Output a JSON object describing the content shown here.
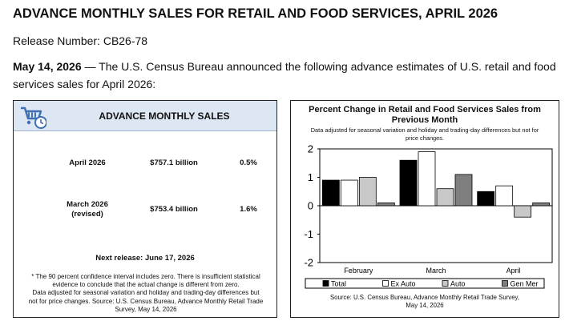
{
  "header": {
    "title": "ADVANCE MONTHLY SALES FOR RETAIL AND FOOD SERVICES, APRIL 2026",
    "release_number": "Release Number: CB26-78",
    "date": "May 14, 2026",
    "announcement": " — The U.S. Census Bureau announced the following advance estimates of U.S. retail and food services sales for April 2026:"
  },
  "sales_box": {
    "title": "ADVANCE MONTHLY SALES",
    "icon": "shopping-cart-clock-icon",
    "rows": [
      {
        "label": "April 2026",
        "amount": "$757.1 billion",
        "pct": "0.5%"
      },
      {
        "label": "March 2026\n(revised)",
        "label_line1": "March 2026",
        "label_line2": "(revised)",
        "amount": "$753.4 billion",
        "pct": "1.6%"
      }
    ],
    "next_release": "Next release: June 17, 2026",
    "footnote_line1": "* The 90 percent confidence interval includes zero. There is insufficient statistical",
    "footnote_line2": "evidence to conclude that the actual change is different from zero.",
    "footnote_line3": "Data adjusted for seasonal variation and holiday and trading-day differences but",
    "footnote_line4": "not for price changes. Source: U.S. Census Bureau, Advance Monthly Retail Trade",
    "footnote_line5": "Survey, May 14, 2026",
    "colors": {
      "header_bg": "#dde7f3",
      "icon_blue": "#3f6fb0"
    }
  },
  "chart_data": {
    "type": "bar",
    "title_line1": "Percent Change in Retail and Food Services Sales from",
    "title_line2": "Previous Month",
    "subtitle_line1": "Data adjusted for seasonal variation and holiday and trading-day differences but not for",
    "subtitle_line2": "price changes.",
    "categories": [
      "February",
      "March",
      "April"
    ],
    "series": [
      {
        "name": "Total",
        "values": [
          0.9,
          1.6,
          0.5
        ],
        "color": "#000000"
      },
      {
        "name": "Ex Auto",
        "values": [
          0.9,
          1.9,
          0.7
        ],
        "color": "#ffffff"
      },
      {
        "name": "Auto",
        "values": [
          1.0,
          0.6,
          -0.4
        ],
        "color": "#c8c8c8"
      },
      {
        "name": "Gen Mer",
        "values": [
          0.1,
          1.1,
          0.1
        ],
        "color": "#7f7f7f"
      }
    ],
    "ylim": [
      -2,
      2
    ],
    "yticks": [
      "2",
      "1",
      "0",
      "-1",
      "-2"
    ],
    "grid": false,
    "legend_position": "bottom",
    "source_line1": "Source: U.S. Census Bureau, Advance Monthly Retail Trade Survey,",
    "source_line2": "May 14, 2026"
  }
}
